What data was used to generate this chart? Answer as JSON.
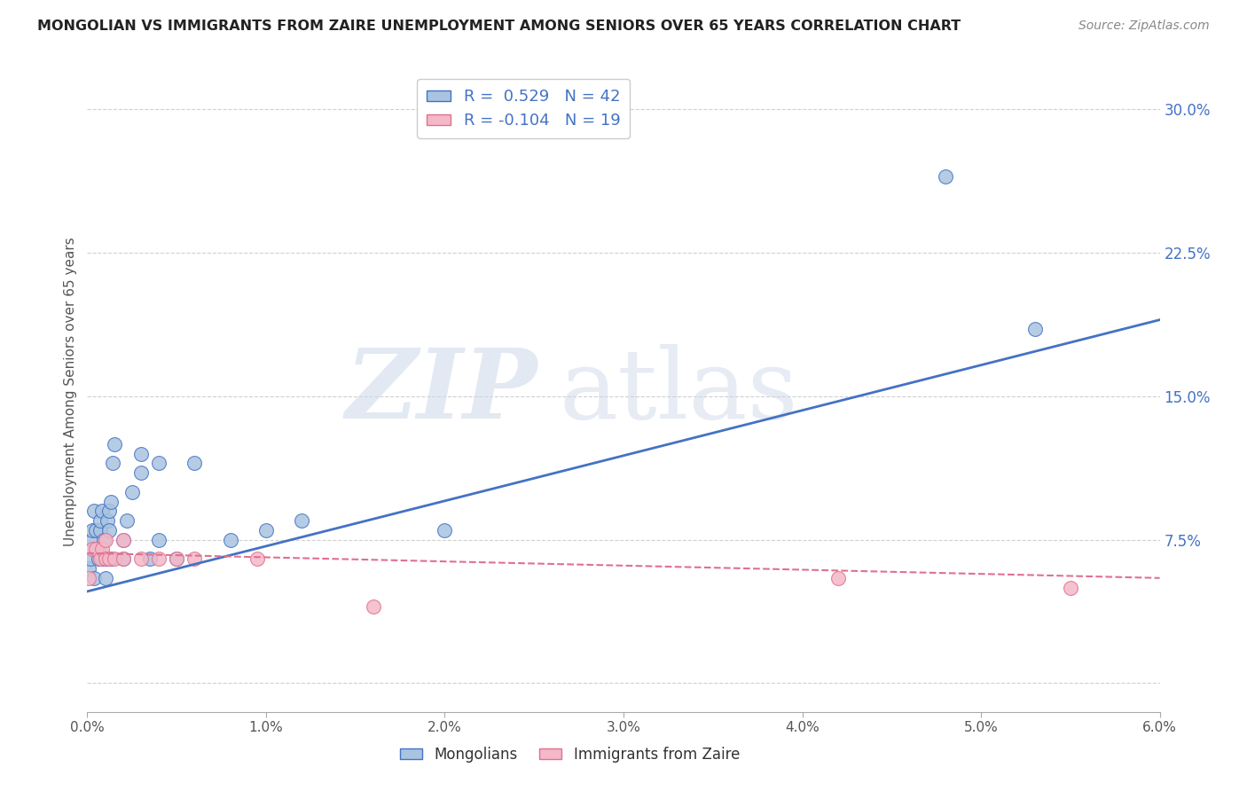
{
  "title": "MONGOLIAN VS IMMIGRANTS FROM ZAIRE UNEMPLOYMENT AMONG SENIORS OVER 65 YEARS CORRELATION CHART",
  "source": "Source: ZipAtlas.com",
  "ylabel": "Unemployment Among Seniors over 65 years",
  "mongolian_R": 0.529,
  "mongolian_N": 42,
  "zaire_R": -0.104,
  "zaire_N": 19,
  "mongolian_color": "#a8c4e0",
  "zaire_color": "#f4b8c8",
  "mongolian_line_color": "#4472c4",
  "zaire_line_color": "#e07090",
  "xlim": [
    0.0,
    0.06
  ],
  "ylim": [
    -0.015,
    0.32
  ],
  "mongolian_x": [
    0.0001,
    0.0002,
    0.0003,
    0.0003,
    0.0004,
    0.0004,
    0.0005,
    0.0005,
    0.0006,
    0.0006,
    0.0007,
    0.0007,
    0.0008,
    0.0008,
    0.0009,
    0.001,
    0.001,
    0.0011,
    0.0011,
    0.0012,
    0.0012,
    0.0013,
    0.0013,
    0.0014,
    0.0015,
    0.002,
    0.002,
    0.0022,
    0.0025,
    0.003,
    0.003,
    0.0035,
    0.004,
    0.004,
    0.005,
    0.006,
    0.008,
    0.01,
    0.012,
    0.02,
    0.048,
    0.053
  ],
  "mongolian_y": [
    0.06,
    0.065,
    0.075,
    0.08,
    0.09,
    0.055,
    0.07,
    0.08,
    0.065,
    0.07,
    0.08,
    0.085,
    0.09,
    0.065,
    0.075,
    0.055,
    0.065,
    0.065,
    0.085,
    0.08,
    0.09,
    0.095,
    0.065,
    0.115,
    0.125,
    0.065,
    0.075,
    0.085,
    0.1,
    0.11,
    0.12,
    0.065,
    0.115,
    0.075,
    0.065,
    0.115,
    0.075,
    0.08,
    0.085,
    0.08,
    0.265,
    0.185
  ],
  "zaire_x": [
    0.0001,
    0.0003,
    0.0005,
    0.0007,
    0.0008,
    0.001,
    0.001,
    0.0012,
    0.0015,
    0.002,
    0.002,
    0.003,
    0.004,
    0.005,
    0.006,
    0.0095,
    0.016,
    0.042,
    0.055
  ],
  "zaire_y": [
    0.055,
    0.07,
    0.07,
    0.065,
    0.07,
    0.065,
    0.075,
    0.065,
    0.065,
    0.065,
    0.075,
    0.065,
    0.065,
    0.065,
    0.065,
    0.065,
    0.04,
    0.055,
    0.05
  ],
  "mongolian_line_x": [
    0.0,
    0.06
  ],
  "mongolian_line_y": [
    0.048,
    0.19
  ],
  "zaire_line_x": [
    0.0,
    0.06
  ],
  "zaire_line_y": [
    0.068,
    0.055
  ],
  "xticks": [
    0.0,
    0.01,
    0.02,
    0.03,
    0.04,
    0.05,
    0.06
  ],
  "xtick_labels": [
    "0.0%",
    "1.0%",
    "2.0%",
    "3.0%",
    "4.0%",
    "5.0%",
    "6.0%"
  ],
  "yticks_right": [
    0.0,
    0.075,
    0.15,
    0.225,
    0.3
  ],
  "ytick_labels_right": [
    "",
    "7.5%",
    "15.0%",
    "22.5%",
    "30.0%"
  ],
  "background_color": "#ffffff",
  "grid_color": "#d0d0d0"
}
